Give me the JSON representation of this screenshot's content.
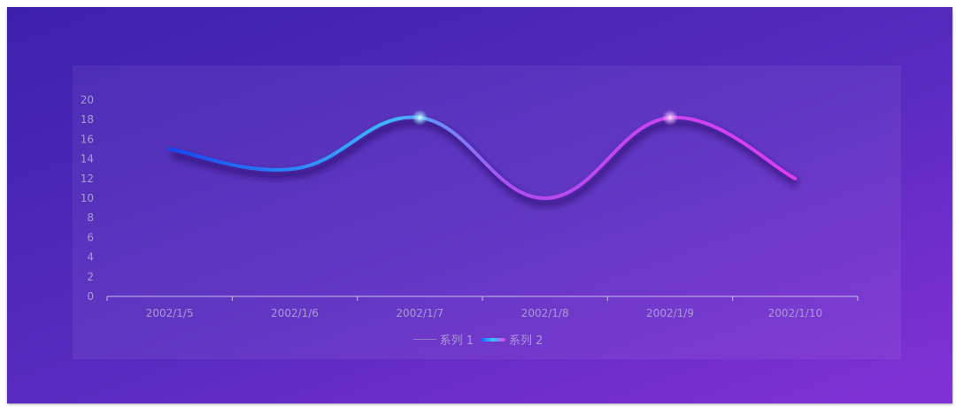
{
  "chart_data": {
    "type": "line",
    "categories": [
      "2002/1/5",
      "2002/1/6",
      "2002/1/7",
      "2002/1/8",
      "2002/1/9",
      "2002/1/10"
    ],
    "series": [
      {
        "name": "系列 1",
        "values": [
          null,
          null,
          null,
          null,
          null,
          null
        ]
      },
      {
        "name": "系列 2",
        "values": [
          15,
          13,
          18.2,
          10,
          18.2,
          12
        ]
      }
    ],
    "ylim": [
      0,
      20
    ],
    "yticks": [
      "0",
      "2",
      "4",
      "6",
      "8",
      "10",
      "12",
      "14",
      "16",
      "18",
      "20"
    ],
    "grid": false,
    "legend_position": "bottom",
    "smooth": true
  }
}
